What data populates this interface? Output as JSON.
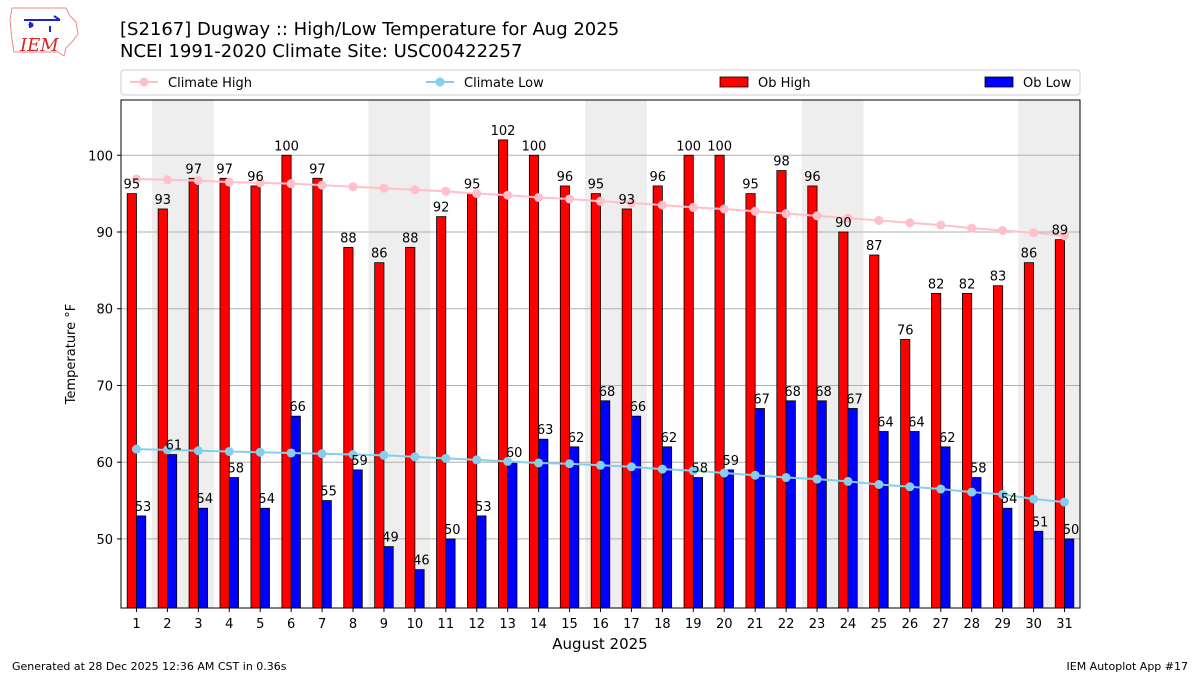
{
  "logo": {
    "text": "IEM"
  },
  "footer": {
    "left": "Generated at 28 Dec 2025 12:36 AM CST in 0.36s",
    "right": "IEM Autoplot App #17"
  },
  "chart_data": {
    "type": "bar",
    "title": "[S2167] Dugway :: High/Low Temperature for Aug 2025",
    "subtitle": "NCEI 1991-2020 Climate Site: USC00422257",
    "xlabel": "August 2025",
    "ylabel": "Temperature °F",
    "ylim": [
      41,
      107.2
    ],
    "yticks": [
      50,
      60,
      70,
      80,
      90,
      100
    ],
    "grid": "y",
    "legend_placement": "top",
    "weekend_shading_days": [
      2,
      3,
      9,
      10,
      16,
      17,
      23,
      24,
      30,
      31
    ],
    "categories": [
      1,
      2,
      3,
      4,
      5,
      6,
      7,
      8,
      9,
      10,
      11,
      12,
      13,
      14,
      15,
      16,
      17,
      18,
      19,
      20,
      21,
      22,
      23,
      24,
      25,
      26,
      27,
      28,
      29,
      30,
      31
    ],
    "series": [
      {
        "name": "Climate High",
        "kind": "line",
        "color": "#ffc0cb",
        "values": [
          96.9,
          96.8,
          96.7,
          96.5,
          96.4,
          96.3,
          96.1,
          95.9,
          95.7,
          95.5,
          95.3,
          95.0,
          94.8,
          94.5,
          94.3,
          94.0,
          93.8,
          93.5,
          93.2,
          93.0,
          92.7,
          92.4,
          92.1,
          91.8,
          91.5,
          91.2,
          90.9,
          90.5,
          90.2,
          89.9,
          89.5
        ]
      },
      {
        "name": "Climate Low",
        "kind": "line",
        "color": "#87ceeb",
        "values": [
          61.7,
          61.6,
          61.5,
          61.4,
          61.3,
          61.2,
          61.1,
          61.0,
          60.9,
          60.7,
          60.5,
          60.3,
          60.1,
          59.9,
          59.8,
          59.6,
          59.4,
          59.1,
          58.9,
          58.6,
          58.3,
          58.0,
          57.8,
          57.5,
          57.1,
          56.8,
          56.5,
          56.1,
          55.8,
          55.2,
          54.8
        ]
      },
      {
        "name": "Ob High",
        "kind": "bar",
        "color": "#ff0000",
        "values": [
          95,
          93,
          97,
          97,
          96,
          100,
          97,
          88,
          86,
          88,
          92,
          95,
          102,
          100,
          96,
          95,
          93,
          96,
          100,
          100,
          95,
          98,
          96,
          90,
          87,
          76,
          82,
          82,
          83,
          86,
          89
        ]
      },
      {
        "name": "Ob Low",
        "kind": "bar",
        "color": "#0000ff",
        "values": [
          53,
          61,
          54,
          58,
          54,
          66,
          55,
          59,
          49,
          46,
          50,
          53,
          60,
          63,
          62,
          68,
          66,
          62,
          58,
          59,
          67,
          68,
          68,
          67,
          64,
          64,
          62,
          58,
          54,
          51,
          50
        ]
      }
    ]
  }
}
